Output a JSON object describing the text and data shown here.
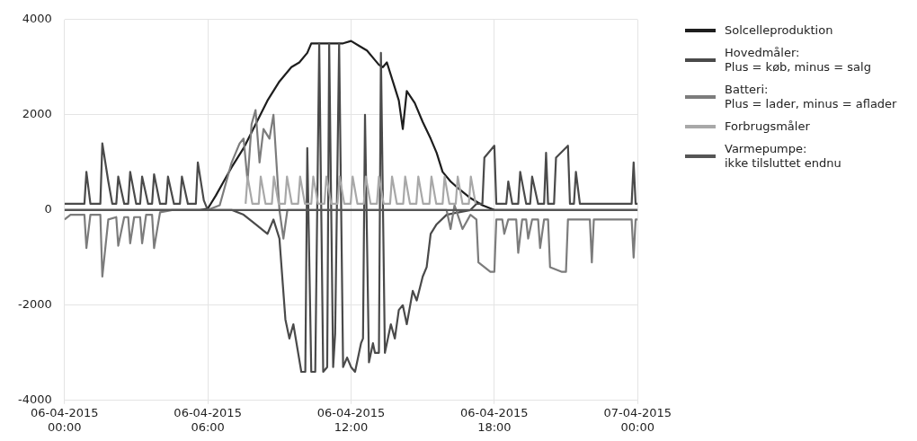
{
  "chart_data": {
    "type": "line",
    "xlim": [
      "2015-04-06T00:00",
      "2015-04-07T00:00"
    ],
    "xticks": [
      {
        "value": "2015-04-06T00:00",
        "label": "06-04-2015\n00:00"
      },
      {
        "value": "2015-04-06T06:00",
        "label": "06-04-2015\n06:00"
      },
      {
        "value": "2015-04-06T12:00",
        "label": "06-04-2015\n12:00"
      },
      {
        "value": "2015-04-06T18:00",
        "label": "06-04-2015\n18:00"
      },
      {
        "value": "2015-04-07T00:00",
        "label": "07-04-2015\n00:00"
      }
    ],
    "ylim": [
      -4000,
      4000
    ],
    "yticks": [
      -4000,
      -2000,
      0,
      2000,
      4000
    ],
    "grid": true,
    "legend": "right",
    "marker": "none",
    "line_style": "solid",
    "series": [
      {
        "name": "Varmepumpe:\nikke tilsluttet endnu",
        "color": "#555555",
        "x": [
          "2015-04-06T00:00",
          "2015-04-06T12:00",
          "2015-04-07T00:00"
        ],
        "values": [
          0,
          0,
          0
        ]
      },
      {
        "name": "Forbrugsmåler",
        "color": "#a8a8a8",
        "x": [
          "2015-04-06T07:35",
          "2015-04-06T07:40",
          "2015-04-06T07:52",
          "2015-04-06T08:08",
          "2015-04-06T08:13",
          "2015-04-06T08:25",
          "2015-04-06T08:41",
          "2015-04-06T08:46",
          "2015-04-06T08:58",
          "2015-04-06T09:14",
          "2015-04-06T09:19",
          "2015-04-06T09:31",
          "2015-04-06T09:47",
          "2015-04-06T09:52",
          "2015-04-06T10:04",
          "2015-04-06T10:20",
          "2015-04-06T10:25",
          "2015-04-06T10:37",
          "2015-04-06T10:53",
          "2015-04-06T10:58",
          "2015-04-06T11:10",
          "2015-04-06T11:26",
          "2015-04-06T11:31",
          "2015-04-06T11:43",
          "2015-04-06T11:59",
          "2015-04-06T12:04",
          "2015-04-06T12:16",
          "2015-04-06T12:32",
          "2015-04-06T12:37",
          "2015-04-06T12:49",
          "2015-04-06T13:05",
          "2015-04-06T13:10",
          "2015-04-06T13:22",
          "2015-04-06T13:38",
          "2015-04-06T13:43",
          "2015-04-06T13:55",
          "2015-04-06T14:11",
          "2015-04-06T14:16",
          "2015-04-06T14:28",
          "2015-04-06T14:44",
          "2015-04-06T14:49",
          "2015-04-06T15:01",
          "2015-04-06T15:17",
          "2015-04-06T15:22",
          "2015-04-06T15:34",
          "2015-04-06T15:50",
          "2015-04-06T15:55",
          "2015-04-06T16:07",
          "2015-04-06T16:23",
          "2015-04-06T16:28",
          "2015-04-06T16:40",
          "2015-04-06T16:56",
          "2015-04-06T17:01",
          "2015-04-06T17:13"
        ],
        "values": [
          130,
          700,
          130,
          130,
          700,
          130,
          130,
          700,
          130,
          130,
          700,
          130,
          130,
          700,
          130,
          130,
          700,
          130,
          130,
          700,
          130,
          130,
          700,
          130,
          130,
          700,
          130,
          130,
          700,
          130,
          130,
          700,
          130,
          130,
          700,
          130,
          130,
          700,
          130,
          130,
          700,
          130,
          130,
          700,
          130,
          130,
          700,
          130,
          130,
          700,
          130,
          130,
          700,
          130
        ]
      },
      {
        "name": "Batteri:\nPlus = lader, minus = aflader",
        "color": "#7c7c7c",
        "x": [
          "2015-04-06T00:00",
          "2015-04-06T00:15",
          "2015-04-06T00:50",
          "2015-04-06T00:55",
          "2015-04-06T01:05",
          "2015-04-06T01:30",
          "2015-04-06T01:35",
          "2015-04-06T01:50",
          "2015-04-06T02:10",
          "2015-04-06T02:15",
          "2015-04-06T02:30",
          "2015-04-06T02:40",
          "2015-04-06T02:45",
          "2015-04-06T02:55",
          "2015-04-06T03:10",
          "2015-04-06T03:15",
          "2015-04-06T03:25",
          "2015-04-06T03:40",
          "2015-04-06T03:45",
          "2015-04-06T04:00",
          "2015-04-06T04:30",
          "2015-04-06T06:00",
          "2015-04-06T06:30",
          "2015-04-06T07:00",
          "2015-04-06T07:20",
          "2015-04-06T07:30",
          "2015-04-06T07:40",
          "2015-04-06T07:50",
          "2015-04-06T08:00",
          "2015-04-06T08:10",
          "2015-04-06T08:20",
          "2015-04-06T08:35",
          "2015-04-06T08:45",
          "2015-04-06T09:00",
          "2015-04-06T09:10",
          "2015-04-06T09:20",
          "2015-04-06T16:00",
          "2015-04-06T16:10",
          "2015-04-06T16:20",
          "2015-04-06T16:40",
          "2015-04-06T17:00",
          "2015-04-06T17:15",
          "2015-04-06T17:20",
          "2015-04-06T17:50",
          "2015-04-06T18:00",
          "2015-04-06T18:05",
          "2015-04-06T18:20",
          "2015-04-06T18:25",
          "2015-04-06T18:35",
          "2015-04-06T18:55",
          "2015-04-06T19:00",
          "2015-04-06T19:10",
          "2015-04-06T19:20",
          "2015-04-06T19:25",
          "2015-04-06T19:35",
          "2015-04-06T19:50",
          "2015-04-06T19:55",
          "2015-04-06T20:05",
          "2015-04-06T20:15",
          "2015-04-06T20:20",
          "2015-04-06T20:50",
          "2015-04-06T21:00",
          "2015-04-06T21:05",
          "2015-04-06T22:00",
          "2015-04-06T22:05",
          "2015-04-06T22:10",
          "2015-04-06T23:45",
          "2015-04-06T23:50",
          "2015-04-06T23:55",
          "2015-04-07T00:00"
        ],
        "values": [
          -200,
          -100,
          -100,
          -800,
          -100,
          -100,
          -1400,
          -200,
          -150,
          -750,
          -150,
          -150,
          -700,
          -150,
          -150,
          -700,
          -100,
          -100,
          -800,
          -50,
          0,
          0,
          100,
          1000,
          1400,
          1500,
          600,
          1800,
          2100,
          1000,
          1700,
          1500,
          2000,
          0,
          -600,
          0,
          0,
          -400,
          100,
          -400,
          -100,
          -200,
          -1100,
          -1300,
          -1300,
          -200,
          -200,
          -500,
          -200,
          -200,
          -900,
          -200,
          -200,
          -600,
          -200,
          -200,
          -800,
          -200,
          -200,
          -1200,
          -1300,
          -1300,
          -200,
          -200,
          -1100,
          -200,
          -200,
          -1000,
          -200,
          -200
        ]
      },
      {
        "name": "Hovedmåler:\nPlus = køb, minus = salg",
        "color": "#4a4a4a",
        "x": [
          "2015-04-06T00:00",
          "2015-04-06T00:50",
          "2015-04-06T00:55",
          "2015-04-06T01:05",
          "2015-04-06T01:30",
          "2015-04-06T01:35",
          "2015-04-06T01:50",
          "2015-04-06T02:00",
          "2015-04-06T02:10",
          "2015-04-06T02:15",
          "2015-04-06T02:30",
          "2015-04-06T02:40",
          "2015-04-06T02:45",
          "2015-04-06T03:00",
          "2015-04-06T03:10",
          "2015-04-06T03:15",
          "2015-04-06T03:30",
          "2015-04-06T03:40",
          "2015-04-06T03:45",
          "2015-04-06T04:00",
          "2015-04-06T04:15",
          "2015-04-06T04:20",
          "2015-04-06T04:35",
          "2015-04-06T04:50",
          "2015-04-06T04:55",
          "2015-04-06T05:10",
          "2015-04-06T05:30",
          "2015-04-06T05:35",
          "2015-04-06T05:50",
          "2015-04-06T06:00",
          "2015-04-06T07:00",
          "2015-04-06T07:30",
          "2015-04-06T08:00",
          "2015-04-06T08:30",
          "2015-04-06T08:45",
          "2015-04-06T09:00",
          "2015-04-06T09:15",
          "2015-04-06T09:25",
          "2015-04-06T09:35",
          "2015-04-06T09:45",
          "2015-04-06T09:55",
          "2015-04-06T10:05",
          "2015-04-06T10:10",
          "2015-04-06T10:20",
          "2015-04-06T10:30",
          "2015-04-06T10:40",
          "2015-04-06T10:50",
          "2015-04-06T11:00",
          "2015-04-06T11:05",
          "2015-04-06T11:15",
          "2015-04-06T11:20",
          "2015-04-06T11:30",
          "2015-04-06T11:40",
          "2015-04-06T11:50",
          "2015-04-06T12:00",
          "2015-04-06T12:10",
          "2015-04-06T12:25",
          "2015-04-06T12:30",
          "2015-04-06T12:35",
          "2015-04-06T12:45",
          "2015-04-06T12:55",
          "2015-04-06T13:00",
          "2015-04-06T13:10",
          "2015-04-06T13:15",
          "2015-04-06T13:25",
          "2015-04-06T13:40",
          "2015-04-06T13:50",
          "2015-04-06T14:00",
          "2015-04-06T14:10",
          "2015-04-06T14:20",
          "2015-04-06T14:35",
          "2015-04-06T14:45",
          "2015-04-06T15:00",
          "2015-04-06T15:10",
          "2015-04-06T15:20",
          "2015-04-06T15:35",
          "2015-04-06T16:00",
          "2015-04-06T17:00",
          "2015-04-06T17:15",
          "2015-04-06T17:30",
          "2015-04-06T17:35",
          "2015-04-06T18:00",
          "2015-04-06T18:05",
          "2015-04-06T18:30",
          "2015-04-06T18:35",
          "2015-04-06T18:45",
          "2015-04-06T19:00",
          "2015-04-06T19:05",
          "2015-04-06T19:20",
          "2015-04-06T19:30",
          "2015-04-06T19:35",
          "2015-04-06T19:50",
          "2015-04-06T20:05",
          "2015-04-06T20:10",
          "2015-04-06T20:15",
          "2015-04-06T20:30",
          "2015-04-06T20:35",
          "2015-04-06T21:05",
          "2015-04-06T21:10",
          "2015-04-06T21:20",
          "2015-04-06T21:25",
          "2015-04-06T21:35",
          "2015-04-06T23:45",
          "2015-04-06T23:50",
          "2015-04-06T23:55",
          "2015-04-07T00:00"
        ],
        "values": [
          130,
          130,
          800,
          130,
          130,
          1400,
          600,
          130,
          130,
          700,
          130,
          130,
          800,
          130,
          130,
          700,
          130,
          130,
          750,
          130,
          130,
          700,
          130,
          130,
          700,
          130,
          130,
          1000,
          200,
          0,
          0,
          -100,
          -300,
          -500,
          -200,
          -600,
          -2300,
          -2700,
          -2400,
          -2900,
          -3400,
          -3400,
          1300,
          -3400,
          -3400,
          3500,
          -3400,
          -3300,
          3500,
          -3300,
          -2600,
          3500,
          -3300,
          -3100,
          -3300,
          -3400,
          -2800,
          -2700,
          2000,
          -3200,
          -2800,
          -3000,
          -3000,
          3300,
          -3000,
          -2400,
          -2700,
          -2100,
          -2000,
          -2400,
          -1700,
          -1900,
          -1400,
          -1200,
          -500,
          -300,
          -100,
          0,
          130,
          130,
          1100,
          1350,
          130,
          130,
          600,
          130,
          130,
          800,
          130,
          130,
          700,
          130,
          130,
          1200,
          130,
          130,
          1100,
          1350,
          130,
          130,
          800,
          130,
          130,
          1000,
          130,
          130
        ]
      },
      {
        "name": "Solcelleproduktion",
        "color": "#1e1e1e",
        "x": [
          "2015-04-06T00:00",
          "2015-04-06T05:40",
          "2015-04-06T06:00",
          "2015-04-06T06:20",
          "2015-04-06T06:40",
          "2015-04-06T07:00",
          "2015-04-06T07:30",
          "2015-04-06T08:00",
          "2015-04-06T08:30",
          "2015-04-06T09:00",
          "2015-04-06T09:30",
          "2015-04-06T09:50",
          "2015-04-06T10:10",
          "2015-04-06T10:20",
          "2015-04-06T11:00",
          "2015-04-06T11:40",
          "2015-04-06T12:00",
          "2015-04-06T12:20",
          "2015-04-06T12:40",
          "2015-04-06T13:00",
          "2015-04-06T13:10",
          "2015-04-06T13:20",
          "2015-04-06T13:30",
          "2015-04-06T13:45",
          "2015-04-06T14:00",
          "2015-04-06T14:10",
          "2015-04-06T14:20",
          "2015-04-06T14:40",
          "2015-04-06T15:00",
          "2015-04-06T15:20",
          "2015-04-06T15:35",
          "2015-04-06T15:50",
          "2015-04-06T16:10",
          "2015-04-06T16:30",
          "2015-04-06T17:00",
          "2015-04-06T17:30",
          "2015-04-06T18:00",
          "2015-04-07T00:00"
        ],
        "values": [
          0,
          0,
          30,
          300,
          600,
          900,
          1300,
          1800,
          2300,
          2700,
          3000,
          3100,
          3300,
          3500,
          3500,
          3500,
          3550,
          3450,
          3350,
          3150,
          3050,
          3000,
          3100,
          2700,
          2300,
          1700,
          2500,
          2250,
          1850,
          1500,
          1200,
          800,
          600,
          450,
          250,
          100,
          0,
          0
        ]
      }
    ]
  }
}
